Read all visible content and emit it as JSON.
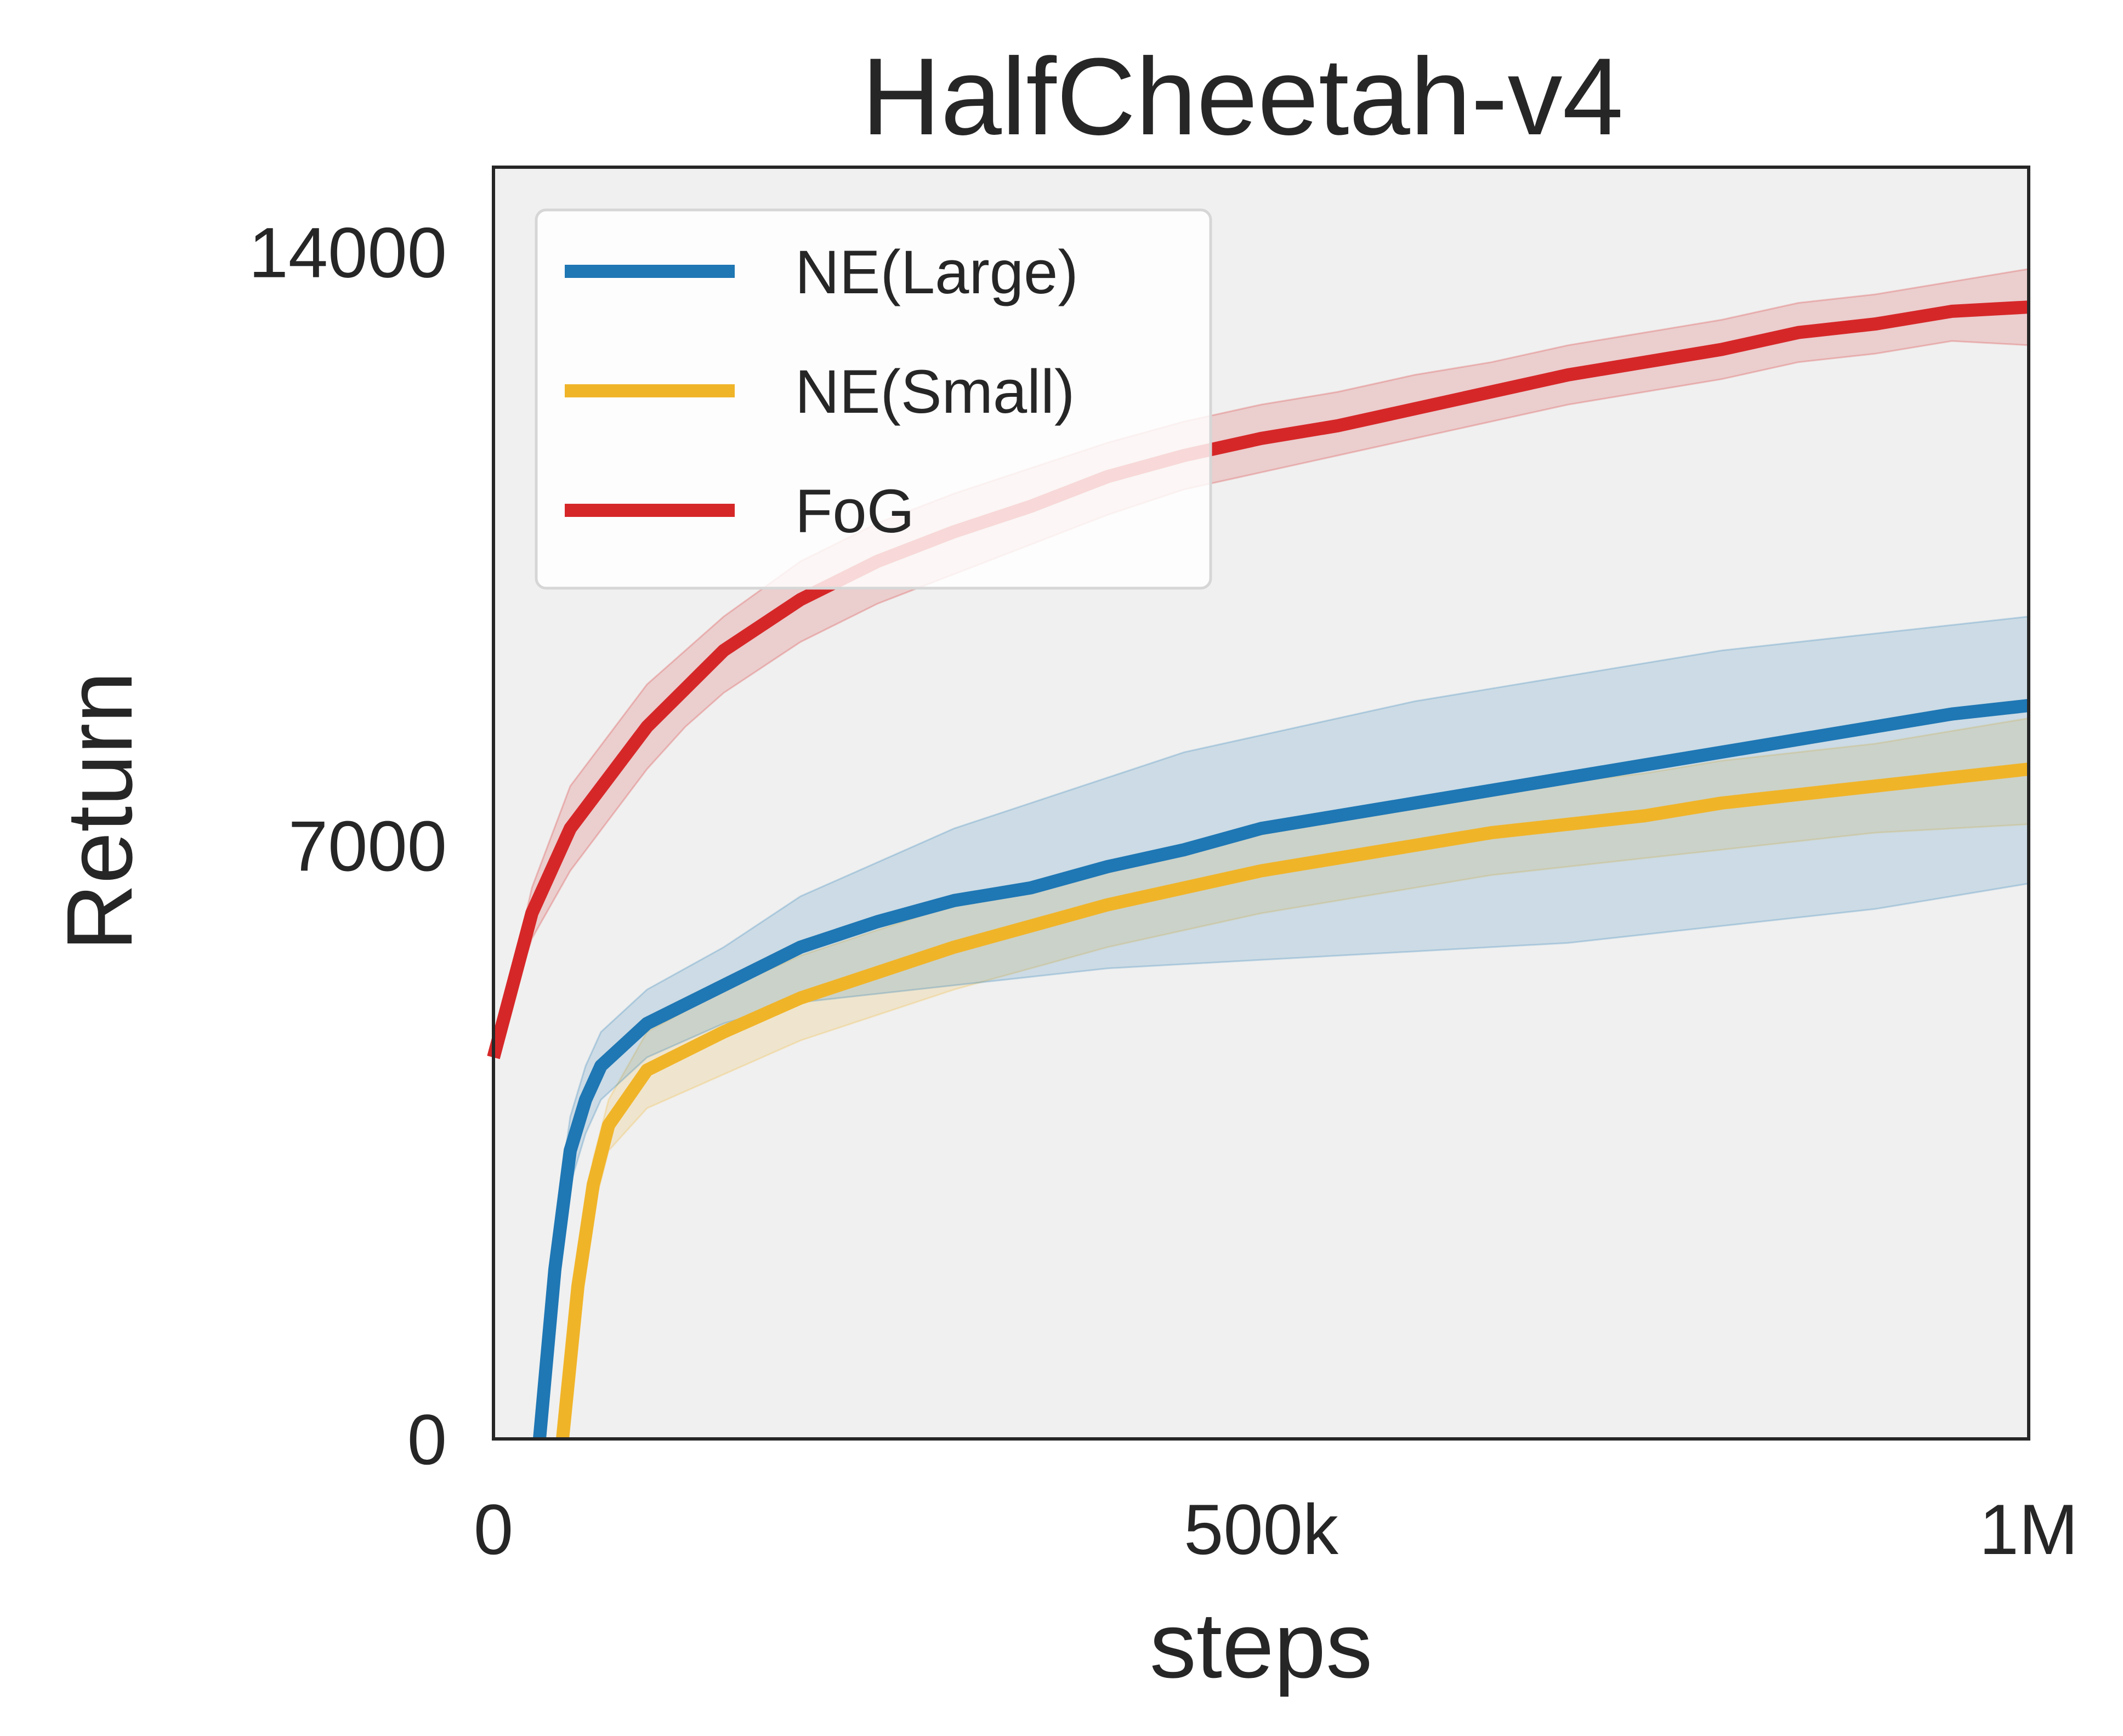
{
  "chart_data": {
    "type": "line",
    "title": "HalfCheetah-v4",
    "xlabel": "steps",
    "ylabel": "Return",
    "xlim": [
      0,
      1000000
    ],
    "ylim": [
      0,
      15000
    ],
    "xticks": [
      {
        "value": 0,
        "label": "0"
      },
      {
        "value": 500000,
        "label": "500k"
      },
      {
        "value": 1000000,
        "label": "1M"
      }
    ],
    "yticks": [
      {
        "value": 0,
        "label": "0"
      },
      {
        "value": 7000,
        "label": "7000"
      },
      {
        "value": 14000,
        "label": "14000"
      }
    ],
    "grid": false,
    "legend": "upper-left",
    "background": "#f0f0f0",
    "series": [
      {
        "name": "NE(Large)",
        "color": "#1f77b4",
        "x": [
          30000,
          40000,
          50000,
          60000,
          70000,
          100000,
          150000,
          200000,
          250000,
          300000,
          350000,
          400000,
          450000,
          500000,
          550000,
          600000,
          650000,
          700000,
          750000,
          800000,
          850000,
          900000,
          950000,
          1000000
        ],
        "y": [
          0,
          2000,
          3400,
          4000,
          4400,
          4900,
          5350,
          5800,
          6100,
          6350,
          6500,
          6750,
          6950,
          7200,
          7350,
          7500,
          7650,
          7800,
          7950,
          8100,
          8250,
          8400,
          8550,
          8650
        ],
        "lower": [
          0,
          1500,
          3000,
          3600,
          4000,
          4500,
          4900,
          5150,
          5250,
          5350,
          5450,
          5550,
          5600,
          5650,
          5700,
          5750,
          5800,
          5850,
          5950,
          6050,
          6150,
          6250,
          6400,
          6550
        ],
        "upper": [
          0,
          2500,
          3800,
          4400,
          4800,
          5300,
          5800,
          6400,
          6800,
          7200,
          7500,
          7800,
          8100,
          8300,
          8500,
          8700,
          8850,
          9000,
          9150,
          9300,
          9400,
          9500,
          9600,
          9700
        ]
      },
      {
        "name": "NE(Small)",
        "color": "#f0b429",
        "x": [
          45000,
          55000,
          65000,
          75000,
          100000,
          150000,
          200000,
          250000,
          300000,
          350000,
          400000,
          450000,
          500000,
          550000,
          600000,
          650000,
          700000,
          750000,
          800000,
          850000,
          900000,
          950000,
          1000000
        ],
        "y": [
          0,
          1800,
          3000,
          3700,
          4350,
          4800,
          5200,
          5500,
          5800,
          6050,
          6300,
          6500,
          6700,
          6850,
          7000,
          7150,
          7250,
          7350,
          7500,
          7600,
          7700,
          7800,
          7900
        ],
        "lower": [
          0,
          1500,
          2700,
          3400,
          3900,
          4300,
          4700,
          5000,
          5300,
          5550,
          5800,
          6000,
          6200,
          6350,
          6500,
          6650,
          6750,
          6850,
          6950,
          7050,
          7150,
          7200,
          7250
        ],
        "upper": [
          0,
          2100,
          3300,
          4000,
          4800,
          5300,
          5700,
          6000,
          6300,
          6550,
          6800,
          7000,
          7200,
          7350,
          7500,
          7650,
          7750,
          7850,
          8000,
          8100,
          8200,
          8350,
          8500
        ]
      },
      {
        "name": "FoG",
        "color": "#d62728",
        "x": [
          0,
          25000,
          50000,
          75000,
          100000,
          125000,
          150000,
          200000,
          250000,
          300000,
          350000,
          400000,
          450000,
          500000,
          550000,
          600000,
          650000,
          700000,
          750000,
          800000,
          850000,
          900000,
          950000,
          1000000
        ],
        "y": [
          4500,
          6200,
          7200,
          7800,
          8400,
          8850,
          9300,
          9900,
          10350,
          10700,
          11000,
          11350,
          11600,
          11800,
          11950,
          12150,
          12350,
          12550,
          12700,
          12850,
          13050,
          13150,
          13300,
          13350
        ],
        "lower": [
          4500,
          5900,
          6700,
          7300,
          7900,
          8400,
          8800,
          9400,
          9850,
          10200,
          10550,
          10900,
          11200,
          11400,
          11600,
          11800,
          12000,
          12200,
          12350,
          12500,
          12700,
          12800,
          12950,
          12900
        ],
        "upper": [
          4500,
          6500,
          7700,
          8300,
          8900,
          9300,
          9700,
          10350,
          10800,
          11150,
          11450,
          11750,
          12000,
          12200,
          12350,
          12550,
          12700,
          12900,
          13050,
          13200,
          13400,
          13500,
          13650,
          13800
        ]
      }
    ]
  }
}
